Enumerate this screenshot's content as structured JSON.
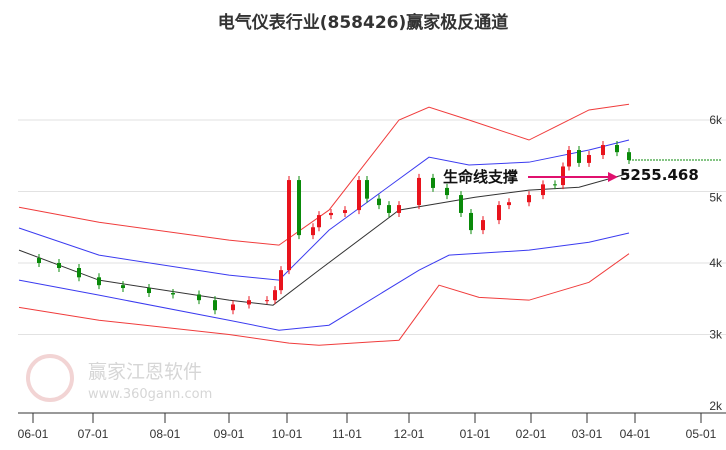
{
  "chart_data": {
    "type": "line",
    "title": "电气仪表行业(858426)赢家极反通道",
    "xlabel": "",
    "ylabel": "",
    "ylim": [
      2000,
      6500
    ],
    "y_ticks": [
      {
        "v": 6000,
        "label": "6k"
      },
      {
        "v": 5000,
        "label": "5k"
      },
      {
        "v": 4000,
        "label": "4k"
      },
      {
        "v": 3000,
        "label": "3k"
      },
      {
        "v": 2000,
        "label": "2k"
      }
    ],
    "x_ticks": [
      {
        "d": 0,
        "label": "06-01"
      },
      {
        "d": 30,
        "label": "07-01"
      },
      {
        "d": 66,
        "label": "08-01"
      },
      {
        "d": 98,
        "label": "09-01"
      },
      {
        "d": 127,
        "label": "10-01"
      },
      {
        "d": 157,
        "label": "11-01"
      },
      {
        "d": 188,
        "label": "12-01"
      },
      {
        "d": 221,
        "label": "01-01"
      },
      {
        "d": 249,
        "label": "02-01"
      },
      {
        "d": 277,
        "label": "03-01"
      },
      {
        "d": 301,
        "label": "04-01"
      },
      {
        "d": 334,
        "label": "05-01"
      }
    ],
    "grid": true,
    "series": [
      {
        "name": "upper-red",
        "color": "#f03c3c",
        "points": [
          [
            -7,
            4780
          ],
          [
            33,
            4570
          ],
          [
            98,
            4320
          ],
          [
            123,
            4250
          ],
          [
            148,
            4740
          ],
          [
            183,
            6000
          ],
          [
            198,
            6180
          ],
          [
            218,
            6000
          ],
          [
            248,
            5720
          ],
          [
            278,
            6140
          ],
          [
            298,
            6220
          ]
        ]
      },
      {
        "name": "upper-blue",
        "color": "#3b3bf0",
        "points": [
          [
            -7,
            4490
          ],
          [
            33,
            4110
          ],
          [
            98,
            3830
          ],
          [
            123,
            3760
          ],
          [
            148,
            4460
          ],
          [
            198,
            5480
          ],
          [
            218,
            5370
          ],
          [
            248,
            5410
          ],
          [
            278,
            5580
          ],
          [
            298,
            5720
          ]
        ]
      },
      {
        "name": "mid-black",
        "color": "#333333",
        "points": [
          [
            -7,
            4180
          ],
          [
            33,
            3760
          ],
          [
            98,
            3480
          ],
          [
            120,
            3410
          ],
          [
            143,
            3900
          ],
          [
            183,
            4740
          ],
          [
            221,
            4920
          ],
          [
            248,
            5020
          ],
          [
            273,
            5060
          ],
          [
            298,
            5255
          ]
        ]
      },
      {
        "name": "lower-blue",
        "color": "#3b3bf0",
        "points": [
          [
            -7,
            3760
          ],
          [
            33,
            3550
          ],
          [
            98,
            3200
          ],
          [
            123,
            3060
          ],
          [
            148,
            3130
          ],
          [
            193,
            3900
          ],
          [
            208,
            4110
          ],
          [
            248,
            4180
          ],
          [
            278,
            4290
          ],
          [
            298,
            4420
          ]
        ]
      },
      {
        "name": "lower-red",
        "color": "#f03c3c",
        "points": [
          [
            -7,
            3380
          ],
          [
            33,
            3200
          ],
          [
            98,
            3000
          ],
          [
            128,
            2880
          ],
          [
            143,
            2850
          ],
          [
            183,
            2920
          ],
          [
            203,
            3690
          ],
          [
            223,
            3520
          ],
          [
            248,
            3480
          ],
          [
            278,
            3730
          ],
          [
            298,
            4130
          ]
        ]
      }
    ],
    "price": [
      [
        -7,
        4070
      ],
      [
        3,
        4000
      ],
      [
        13,
        3930
      ],
      [
        23,
        3800
      ],
      [
        33,
        3690
      ],
      [
        45,
        3650
      ],
      [
        58,
        3580
      ],
      [
        70,
        3560
      ],
      [
        83,
        3480
      ],
      [
        91,
        3340
      ],
      [
        100,
        3420
      ],
      [
        108,
        3480
      ],
      [
        117,
        3480
      ],
      [
        121,
        3620
      ],
      [
        124,
        3900
      ],
      [
        128,
        5160
      ],
      [
        133,
        4390
      ],
      [
        140,
        4500
      ],
      [
        143,
        4670
      ],
      [
        149,
        4700
      ],
      [
        156,
        4740
      ],
      [
        163,
        5160
      ],
      [
        167,
        4900
      ],
      [
        173,
        4810
      ],
      [
        178,
        4700
      ],
      [
        183,
        4810
      ],
      [
        193,
        5190
      ],
      [
        200,
        5050
      ],
      [
        207,
        4950
      ],
      [
        214,
        4700
      ],
      [
        219,
        4460
      ],
      [
        225,
        4600
      ],
      [
        233,
        4810
      ],
      [
        238,
        4850
      ],
      [
        248,
        4950
      ],
      [
        255,
        5100
      ],
      [
        261,
        5090
      ],
      [
        265,
        5350
      ],
      [
        268,
        5580
      ],
      [
        273,
        5400
      ],
      [
        278,
        5510
      ],
      [
        285,
        5650
      ],
      [
        292,
        5550
      ],
      [
        298,
        5440
      ]
    ],
    "last_price_line": 5440,
    "annotation": {
      "label": "生命线支撑",
      "value": "5255.468",
      "value_num": 5255.468
    },
    "watermark": {
      "text": "赢家江恩软件",
      "url": "www.360gann.com",
      "seal": "江赢恩家"
    }
  }
}
